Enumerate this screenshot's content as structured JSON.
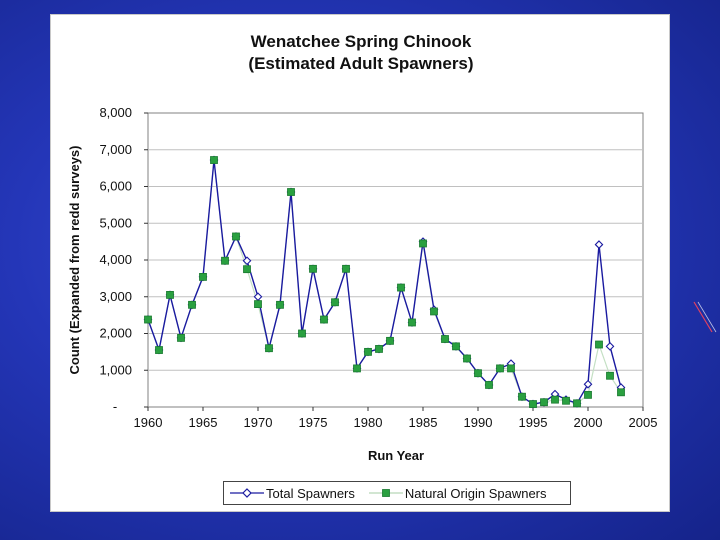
{
  "chart_data": {
    "type": "line",
    "title": "Wenatchee Spring Chinook",
    "subtitle": "(Estimated Adult Spawners)",
    "xlabel": "Run Year",
    "ylabel": "Count (Expanded from redd surveys)",
    "xlim": [
      1960,
      2005
    ],
    "ylim": [
      0,
      8000
    ],
    "x_ticks": [
      "1960",
      "1965",
      "1970",
      "1975",
      "1980",
      "1985",
      "1990",
      "1995",
      "2000",
      "2005"
    ],
    "y_ticks": [
      "-",
      "1,000",
      "2,000",
      "3,000",
      "4,000",
      "5,000",
      "6,000",
      "7,000",
      "8,000"
    ],
    "grid": "horizontal",
    "legend_position": "bottom",
    "x": [
      1960,
      1961,
      1962,
      1963,
      1964,
      1965,
      1966,
      1967,
      1968,
      1969,
      1970,
      1971,
      1972,
      1973,
      1974,
      1975,
      1976,
      1977,
      1978,
      1979,
      1980,
      1981,
      1982,
      1983,
      1984,
      1985,
      1986,
      1987,
      1988,
      1989,
      1990,
      1991,
      1992,
      1993,
      1994,
      1995,
      1996,
      1997,
      1998,
      1999,
      2000,
      2001,
      2002,
      2003
    ],
    "series": [
      {
        "name": "Total Spawners",
        "color": "#1a1aa0",
        "marker": "diamond",
        "values": [
          2380,
          1550,
          3050,
          1880,
          2780,
          3540,
          6720,
          3980,
          4640,
          3980,
          3000,
          1600,
          2780,
          5850,
          2000,
          3760,
          2380,
          2850,
          3760,
          1050,
          1500,
          1580,
          1800,
          3250,
          2300,
          4500,
          2650,
          1850,
          1650,
          1320,
          920,
          600,
          1050,
          1180,
          280,
          80,
          130,
          350,
          200,
          100,
          620,
          4420,
          1650,
          530
        ]
      },
      {
        "name": "Natural Origin Spawners",
        "color": "#2aa040",
        "marker": "square",
        "values": [
          2380,
          1550,
          3050,
          1880,
          2780,
          3540,
          6720,
          3980,
          4640,
          3750,
          2800,
          1600,
          2780,
          5850,
          2000,
          3760,
          2380,
          2850,
          3760,
          1050,
          1500,
          1580,
          1800,
          3250,
          2300,
          4450,
          2600,
          1850,
          1650,
          1320,
          920,
          600,
          1050,
          1050,
          280,
          80,
          130,
          200,
          170,
          100,
          330,
          1700,
          850,
          400
        ]
      }
    ]
  },
  "colors": {
    "background": "#2436b8",
    "panel": "#ffffff",
    "plot_bg": "#ffffff",
    "grid": "#c0c0c0"
  }
}
